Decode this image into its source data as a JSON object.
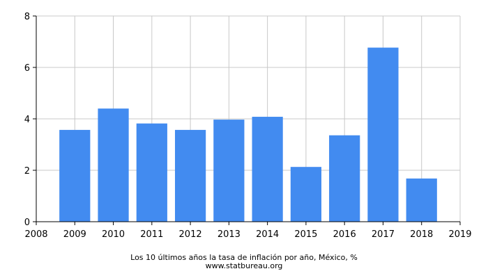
{
  "chart_data": {
    "type": "bar",
    "title": "",
    "xlabel": "",
    "ylabel": "",
    "categories": [
      "2009",
      "2010",
      "2011",
      "2012",
      "2013",
      "2014",
      "2015",
      "2016",
      "2017",
      "2018"
    ],
    "x": [
      2009,
      2010,
      2011,
      2012,
      2013,
      2014,
      2015,
      2016,
      2017,
      2018
    ],
    "values": [
      3.57,
      4.4,
      3.82,
      3.57,
      3.97,
      4.08,
      2.13,
      3.36,
      6.77,
      1.68
    ],
    "xlim": [
      2008,
      2019
    ],
    "ylim": [
      0,
      8
    ],
    "xticks": [
      "2008",
      "2009",
      "2010",
      "2011",
      "2012",
      "2013",
      "2014",
      "2015",
      "2016",
      "2017",
      "2018",
      "2019"
    ],
    "yticks": [
      "0",
      "2",
      "4",
      "6",
      "8"
    ],
    "grid": true,
    "legend": "none",
    "bar_color": "#428bf0"
  },
  "caption": {
    "title": "Los 10 últimos años la tasa de inflación por año, México, %",
    "source": "www.statbureau.org"
  }
}
